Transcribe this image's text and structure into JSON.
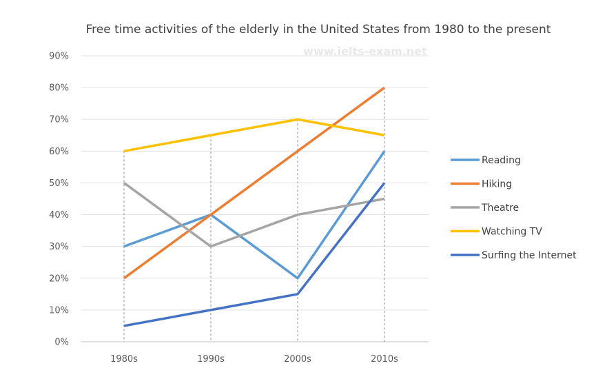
{
  "watermark": "www.ielts-exam.net",
  "chart_data": {
    "type": "line",
    "title": "Free time activities of the elderly in the United States from 1980 to the present",
    "xlabel": "",
    "ylabel": "",
    "categories": [
      "1980s",
      "1990s",
      "2000s",
      "2010s"
    ],
    "ylim": [
      0,
      90
    ],
    "yticks": [
      0,
      10,
      20,
      30,
      40,
      50,
      60,
      70,
      80,
      90
    ],
    "ytick_labels": [
      "0%",
      "10%",
      "20%",
      "30%",
      "40%",
      "50%",
      "60%",
      "70%",
      "80%",
      "90%"
    ],
    "grid": true,
    "legend_position": "right",
    "drop_lines": true,
    "series": [
      {
        "name": "Reading",
        "color": "#5b9bd5",
        "values": [
          30,
          40,
          20,
          60
        ]
      },
      {
        "name": "Hiking",
        "color": "#ed7d31",
        "values": [
          20,
          40,
          60,
          80
        ]
      },
      {
        "name": "Theatre",
        "color": "#a5a5a5",
        "values": [
          50,
          30,
          40,
          45
        ]
      },
      {
        "name": "Watching TV",
        "color": "#ffc000",
        "values": [
          60,
          65,
          70,
          65
        ]
      },
      {
        "name": "Surfing the Internet",
        "color": "#4472c4",
        "values": [
          5,
          10,
          15,
          50
        ]
      }
    ]
  }
}
